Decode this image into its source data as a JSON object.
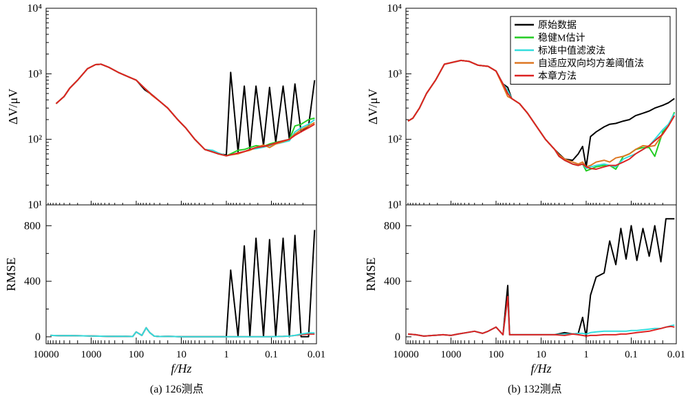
{
  "colors": {
    "raw": "#000000",
    "robust": "#22cc22",
    "median": "#33dddd",
    "adaptive": "#dd7722",
    "proposed": "#dd2222"
  },
  "legend": {
    "placement": "top-right of panel (b)",
    "items": [
      {
        "key": "raw",
        "label": "原始数据"
      },
      {
        "key": "robust",
        "label": "稳健M估计"
      },
      {
        "key": "median",
        "label": "标准中值滤波法"
      },
      {
        "key": "adaptive",
        "label": "自适应双向均方差阈值法"
      },
      {
        "key": "proposed",
        "label": "本章方法"
      }
    ]
  },
  "chart_data": [
    {
      "type": "line",
      "caption": "(a) 126测点",
      "xlabel": "f/Hz",
      "x_scale": "log",
      "x_reversed": true,
      "xlim": [
        10000,
        0.01
      ],
      "x_ticks": [
        "10000",
        "1000",
        "100",
        "10",
        "1",
        "0.1",
        "0.01"
      ],
      "top": {
        "ylabel": "ΔV/μV",
        "y_scale": "log",
        "ylim": [
          10,
          10000
        ],
        "y_ticks": [
          "10¹",
          "10²",
          "10³",
          "10⁴"
        ],
        "x": [
          6000,
          4000,
          3000,
          2000,
          1200,
          800,
          600,
          400,
          250,
          150,
          100,
          65,
          45,
          30,
          20,
          12,
          8,
          5,
          3,
          2,
          1.5,
          1,
          0.8,
          0.55,
          0.4,
          0.3,
          0.22,
          0.15,
          0.11,
          0.08,
          0.055,
          0.04,
          0.03,
          0.022,
          0.015,
          0.011
        ],
        "series": [
          {
            "key": "raw",
            "values": [
              350,
              450,
              600,
              800,
              1200,
              1380,
              1400,
              1250,
              1050,
              900,
              800,
              570,
              480,
              380,
              300,
              200,
              150,
              100,
              70,
              64,
              60,
              58,
              1050,
              65,
              650,
              70,
              650,
              80,
              620,
              90,
              650,
              100,
              700,
              130,
              160,
              800
            ]
          },
          {
            "key": "robust",
            "values": [
              350,
              450,
              600,
              800,
              1200,
              1380,
              1400,
              1250,
              1050,
              900,
              800,
              600,
              480,
              380,
              300,
              200,
              150,
              100,
              70,
              64,
              60,
              56,
              60,
              68,
              70,
              75,
              80,
              78,
              85,
              90,
              95,
              100,
              160,
              170,
              200,
              210
            ]
          },
          {
            "key": "median",
            "values": [
              350,
              450,
              600,
              800,
              1200,
              1380,
              1400,
              1250,
              1050,
              900,
              800,
              600,
              480,
              380,
              300,
              200,
              150,
              100,
              70,
              68,
              62,
              56,
              58,
              62,
              65,
              70,
              72,
              76,
              80,
              85,
              90,
              95,
              130,
              150,
              170,
              200
            ]
          },
          {
            "key": "adaptive",
            "values": [
              350,
              450,
              600,
              800,
              1200,
              1380,
              1400,
              1250,
              1050,
              900,
              800,
              600,
              470,
              380,
              300,
              200,
              150,
              100,
              70,
              64,
              60,
              56,
              58,
              60,
              65,
              68,
              75,
              82,
              75,
              85,
              92,
              100,
              120,
              140,
              160,
              180
            ]
          },
          {
            "key": "proposed",
            "values": [
              350,
              450,
              600,
              800,
              1200,
              1380,
              1400,
              1250,
              1050,
              900,
              800,
              600,
              480,
              380,
              300,
              200,
              150,
              100,
              70,
              64,
              60,
              56,
              58,
              62,
              65,
              70,
              75,
              78,
              82,
              88,
              95,
              100,
              115,
              130,
              150,
              170
            ]
          }
        ]
      },
      "bottom": {
        "ylabel": "RMSE",
        "y_scale": "linear",
        "ylim": [
          -50,
          950
        ],
        "y_ticks": [
          "0",
          "400",
          "800"
        ],
        "x": [
          8000,
          5000,
          3000,
          1500,
          800,
          400,
          200,
          120,
          100,
          75,
          60,
          50,
          40,
          30,
          20,
          10,
          5,
          2,
          1.5,
          1,
          0.8,
          0.55,
          0.4,
          0.3,
          0.22,
          0.15,
          0.11,
          0.08,
          0.055,
          0.04,
          0.03,
          0.022,
          0.015,
          0.011
        ],
        "series": [
          {
            "key": "raw",
            "values": [
              10,
              8,
              9,
              7,
              5,
              3,
              4,
              2,
              35,
              10,
              65,
              30,
              5,
              2,
              3,
              1,
              1,
              1,
              1,
              1,
              480,
              1,
              655,
              1,
              710,
              1,
              700,
              1,
              710,
              1,
              730,
              1,
              1,
              770
            ]
          },
          {
            "key": "proposed",
            "values": [
              10,
              8,
              9,
              7,
              5,
              3,
              4,
              2,
              35,
              10,
              65,
              30,
              5,
              2,
              3,
              1,
              1,
              1,
              1,
              1,
              1,
              1,
              1,
              1,
              1,
              1,
              1,
              2,
              3,
              5,
              10,
              15,
              20,
              20
            ]
          },
          {
            "key": "median",
            "values": [
              10,
              8,
              9,
              7,
              5,
              3,
              4,
              2,
              35,
              10,
              65,
              30,
              5,
              2,
              3,
              1,
              1,
              1,
              1,
              1,
              1,
              1,
              1,
              1,
              1,
              1,
              1,
              2,
              3,
              5,
              10,
              20,
              28,
              28
            ]
          }
        ]
      }
    },
    {
      "type": "line",
      "caption": "(b) 132测点",
      "xlabel": "f/Hz",
      "x_scale": "log",
      "x_reversed": true,
      "xlim": [
        10000,
        0.01
      ],
      "x_ticks": [
        "10000",
        "1000",
        "100",
        "10",
        "1",
        "0.1",
        "0.01"
      ],
      "top": {
        "ylabel": "ΔV/μV",
        "y_scale": "log",
        "ylim": [
          10,
          10000
        ],
        "y_ticks": [
          "10¹",
          "10²",
          "10³",
          "10⁴"
        ],
        "x": [
          9000,
          7000,
          5000,
          3500,
          2200,
          1400,
          900,
          600,
          400,
          250,
          150,
          100,
          70,
          55,
          45,
          30,
          20,
          12,
          8,
          5,
          4,
          3,
          2,
          1.5,
          1.2,
          1,
          0.8,
          0.6,
          0.4,
          0.3,
          0.22,
          0.15,
          0.11,
          0.08,
          0.055,
          0.04,
          0.03,
          0.02,
          0.015,
          0.011
        ],
        "series": [
          {
            "key": "raw",
            "values": [
              190,
              210,
              300,
              500,
              800,
              1400,
              1500,
              1600,
              1550,
              1350,
              1300,
              1100,
              700,
              620,
              420,
              350,
              250,
              150,
              100,
              70,
              60,
              50,
              48,
              60,
              78,
              38,
              110,
              130,
              155,
              170,
              175,
              190,
              200,
              230,
              250,
              270,
              300,
              330,
              360,
              420
            ]
          },
          {
            "key": "robust",
            "values": [
              190,
              210,
              300,
              500,
              800,
              1400,
              1500,
              1600,
              1550,
              1350,
              1300,
              1100,
              700,
              550,
              420,
              350,
              250,
              150,
              100,
              70,
              55,
              48,
              42,
              40,
              42,
              33,
              35,
              38,
              40,
              40,
              35,
              55,
              60,
              70,
              75,
              75,
              55,
              130,
              160,
              260
            ]
          },
          {
            "key": "median",
            "values": [
              190,
              210,
              300,
              500,
              800,
              1400,
              1500,
              1600,
              1550,
              1350,
              1300,
              1100,
              700,
              550,
              420,
              350,
              250,
              150,
              100,
              70,
              55,
              48,
              42,
              40,
              42,
              36,
              38,
              40,
              42,
              40,
              38,
              50,
              55,
              60,
              70,
              80,
              100,
              140,
              170,
              250
            ]
          },
          {
            "key": "adaptive",
            "values": [
              190,
              210,
              300,
              500,
              800,
              1400,
              1500,
              1600,
              1550,
              1350,
              1300,
              1100,
              650,
              450,
              420,
              350,
              250,
              150,
              100,
              70,
              58,
              50,
              45,
              42,
              45,
              38,
              40,
              45,
              48,
              45,
              52,
              55,
              60,
              70,
              80,
              78,
              80,
              120,
              160,
              230
            ]
          },
          {
            "key": "proposed",
            "values": [
              190,
              210,
              300,
              500,
              800,
              1400,
              1500,
              1600,
              1550,
              1350,
              1300,
              1100,
              700,
              500,
              420,
              350,
              250,
              150,
              100,
              70,
              55,
              48,
              42,
              40,
              42,
              38,
              36,
              35,
              38,
              40,
              40,
              45,
              50,
              60,
              70,
              80,
              95,
              120,
              160,
              230
            ]
          }
        ]
      },
      "bottom": {
        "ylabel": "RMSE",
        "y_scale": "linear",
        "ylim": [
          -50,
          950
        ],
        "y_ticks": [
          "0",
          "400",
          "800"
        ],
        "x": [
          9000,
          6000,
          4000,
          2500,
          1500,
          1000,
          700,
          450,
          300,
          200,
          150,
          100,
          70,
          55,
          50,
          45,
          30,
          15,
          5,
          3,
          2,
          1.5,
          1.2,
          1,
          0.8,
          0.6,
          0.4,
          0.3,
          0.22,
          0.17,
          0.13,
          0.1,
          0.075,
          0.055,
          0.04,
          0.03,
          0.022,
          0.017,
          0.013,
          0.011
        ],
        "series": [
          {
            "key": "raw",
            "values": [
              20,
              15,
              5,
              10,
              15,
              10,
              20,
              30,
              40,
              25,
              40,
              70,
              15,
              370,
              15,
              15,
              15,
              15,
              15,
              30,
              20,
              25,
              140,
              0,
              300,
              430,
              460,
              690,
              520,
              780,
              560,
              800,
              550,
              780,
              580,
              800,
              540,
              850,
              850,
              850
            ]
          },
          {
            "key": "median",
            "values": [
              20,
              15,
              5,
              10,
              15,
              10,
              20,
              30,
              40,
              25,
              40,
              70,
              15,
              280,
              15,
              15,
              15,
              15,
              15,
              20,
              20,
              25,
              25,
              20,
              30,
              35,
              40,
              40,
              40,
              40,
              40,
              45,
              45,
              50,
              55,
              60,
              60,
              70,
              80,
              85
            ]
          },
          {
            "key": "proposed",
            "values": [
              20,
              15,
              5,
              10,
              15,
              10,
              20,
              30,
              40,
              25,
              40,
              70,
              15,
              290,
              15,
              15,
              15,
              15,
              15,
              10,
              20,
              15,
              10,
              5,
              10,
              10,
              15,
              15,
              15,
              20,
              20,
              25,
              30,
              35,
              40,
              50,
              60,
              70,
              75,
              70
            ]
          }
        ]
      }
    }
  ]
}
